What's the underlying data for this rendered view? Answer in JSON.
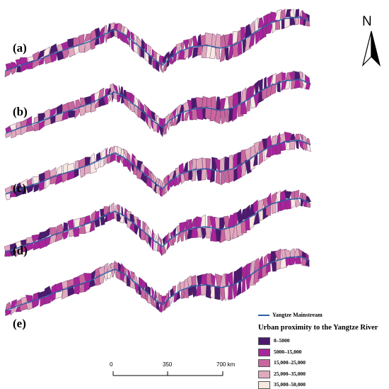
{
  "panels": [
    {
      "label": "(a)"
    },
    {
      "label": "(b)"
    },
    {
      "label": "(c)"
    },
    {
      "label": "(d)"
    },
    {
      "label": "(e)"
    }
  ],
  "north_arrow": {
    "letter": "N"
  },
  "legend": {
    "river_label": "Yangtze Mainstream",
    "river_color": "#2e5fa8",
    "title": "Urban proximity to the Yangtze River",
    "classes": [
      {
        "label": "0–5000",
        "color": "#4a1a6e"
      },
      {
        "label": "5000–15,000",
        "color": "#a8249a"
      },
      {
        "label": "15,000–25,000",
        "color": "#c9669f"
      },
      {
        "label": "25,000–35,000",
        "color": "#e0a9be"
      },
      {
        "label": "35,000–50,000",
        "color": "#f7e8e2"
      }
    ]
  },
  "scale_bar": {
    "ticks": [
      {
        "value": "0"
      },
      {
        "value": "350"
      },
      {
        "value": "700 km"
      }
    ]
  }
}
